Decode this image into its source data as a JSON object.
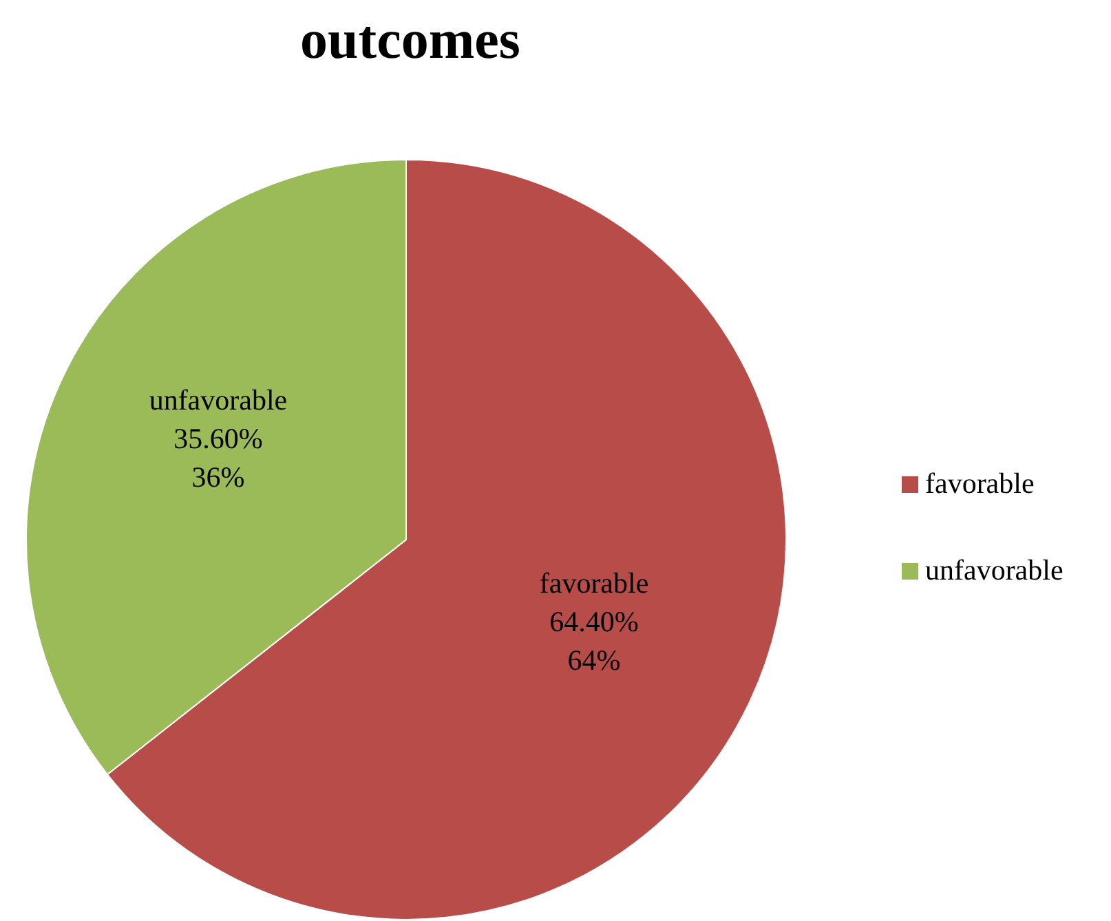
{
  "chart_data": {
    "type": "pie",
    "title": "outcomes",
    "categories": [
      "favorable",
      "unfavorable"
    ],
    "values": [
      64.4,
      35.6
    ],
    "colors": [
      "#b84c49",
      "#9bbb59"
    ],
    "value_labels": [
      "64.40%\n64%",
      "35.60%\n36%"
    ],
    "legend": "right"
  }
}
